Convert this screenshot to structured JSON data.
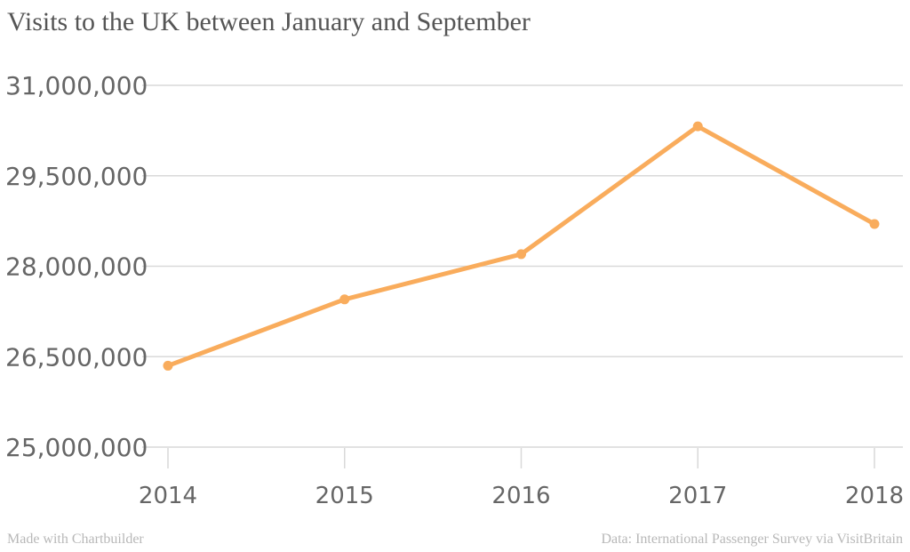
{
  "chart_data": {
    "type": "line",
    "title": "Visits to the UK between January and September",
    "xlabel": "",
    "ylabel": "",
    "categories": [
      "2014",
      "2015",
      "2016",
      "2017",
      "2018"
    ],
    "series": [
      {
        "values": [
          26350000,
          27450000,
          28200000,
          30320000,
          28700000
        ],
        "color": "#f9ac5c"
      }
    ],
    "ylim": [
      25000000,
      31000000
    ],
    "yticks": [
      25000000,
      26500000,
      28000000,
      29500000,
      31000000
    ],
    "ytick_labels": [
      "25,000,000",
      "26,500,000",
      "28,000,000",
      "29,500,000",
      "31,000,000"
    ],
    "grid": true,
    "legend": "none"
  },
  "footer": {
    "credit": "Made with Chartbuilder",
    "source": "Data: International Passenger Survey via VisitBritain"
  }
}
